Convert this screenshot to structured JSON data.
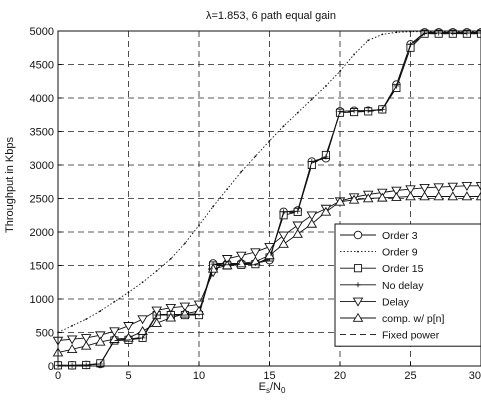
{
  "chart_data": {
    "type": "line",
    "title": "λ=1.853, 6 path equal gain",
    "xlabel": "E_s/N_0",
    "xlabel_main": "E",
    "xlabel_sub1": "s",
    "xlabel_slash": "/N",
    "xlabel_sub2": "0",
    "ylabel": "Throughput in Kbps",
    "xlim": [
      0,
      30
    ],
    "ylim": [
      0,
      5000
    ],
    "x_ticks": [
      0,
      5,
      10,
      15,
      20,
      25,
      30
    ],
    "y_ticks": [
      0,
      500,
      1000,
      1500,
      2000,
      2500,
      3000,
      3500,
      4000,
      4500,
      5000
    ],
    "grid": "dashed",
    "legend_position": "lower-right",
    "series": [
      {
        "name": "Order 3",
        "marker": "circle",
        "dash": "solid",
        "x": [
          0,
          1,
          2,
          3,
          4,
          5,
          6,
          7,
          8,
          9,
          10,
          11,
          12,
          13,
          14,
          15,
          16,
          17,
          18,
          19,
          20,
          21,
          22,
          23,
          24,
          25,
          26,
          27,
          28,
          29,
          30
        ],
        "y": [
          10,
          10,
          15,
          30,
          390,
          400,
          430,
          770,
          770,
          770,
          780,
          1530,
          1530,
          1530,
          1530,
          1580,
          2300,
          2320,
          3050,
          3100,
          3800,
          3810,
          3810,
          3830,
          4200,
          4800,
          4980,
          4980,
          4980,
          4980,
          4980
        ]
      },
      {
        "name": "Order 9",
        "marker": "dot",
        "dash": "dotted",
        "x": [
          0,
          1,
          2,
          3,
          4,
          5,
          6,
          7,
          8,
          9,
          10,
          11,
          12,
          13,
          14,
          15,
          16,
          17,
          18,
          19,
          20,
          21,
          22,
          23,
          24,
          25,
          26,
          27,
          28,
          29,
          30
        ],
        "y": [
          500,
          600,
          700,
          820,
          960,
          1100,
          1250,
          1420,
          1600,
          1830,
          2100,
          2380,
          2640,
          2900,
          3130,
          3360,
          3580,
          3780,
          3980,
          4180,
          4400,
          4650,
          4860,
          4950,
          4980,
          4990,
          4990,
          4990,
          4990,
          4990,
          4990
        ]
      },
      {
        "name": "Order 15",
        "marker": "square",
        "dash": "solid",
        "x": [
          0,
          1,
          2,
          3,
          4,
          5,
          6,
          7,
          8,
          9,
          10,
          11,
          12,
          13,
          14,
          15,
          16,
          17,
          18,
          19,
          20,
          21,
          22,
          23,
          24,
          25,
          26,
          27,
          28,
          29,
          30
        ],
        "y": [
          10,
          10,
          15,
          40,
          380,
          390,
          420,
          760,
          760,
          760,
          760,
          1500,
          1500,
          1510,
          1520,
          1620,
          2250,
          2300,
          3000,
          3150,
          3780,
          3790,
          3800,
          3830,
          4150,
          4750,
          4960,
          4960,
          4960,
          4960,
          4960
        ]
      },
      {
        "name": "No delay",
        "marker": "plus",
        "dash": "solid",
        "x": [
          0,
          1,
          2,
          3,
          4,
          5,
          6,
          7,
          8,
          9,
          10,
          11,
          12,
          13,
          14,
          15,
          16,
          17,
          18,
          19,
          20,
          21,
          22,
          23,
          24,
          25,
          26,
          27,
          28,
          29,
          30
        ],
        "y": [
          10,
          10,
          15,
          30,
          380,
          390,
          420,
          760,
          760,
          760,
          780,
          1520,
          1520,
          1520,
          1530,
          1600,
          2300,
          2310,
          3050,
          3120,
          3800,
          3810,
          3810,
          3830,
          4180,
          4800,
          4970,
          4970,
          4970,
          4970,
          4970
        ]
      },
      {
        "name": "Delay",
        "marker": "triangle-down",
        "dash": "solid",
        "x": [
          0,
          1,
          2,
          3,
          4,
          5,
          6,
          7,
          8,
          9,
          10,
          11,
          12,
          13,
          14,
          15,
          16,
          17,
          18,
          19,
          20,
          21,
          22,
          23,
          24,
          25,
          26,
          27,
          28,
          29,
          30
        ],
        "y": [
          380,
          400,
          420,
          460,
          520,
          600,
          700,
          830,
          870,
          890,
          920,
          1400,
          1600,
          1650,
          1700,
          1780,
          1950,
          2100,
          2250,
          2350,
          2460,
          2520,
          2560,
          2590,
          2620,
          2640,
          2660,
          2670,
          2680,
          2690,
          2690
        ]
      },
      {
        "name": "comp. w/ p[n]",
        "marker": "triangle-up",
        "dash": "solid",
        "x": [
          0,
          1,
          2,
          3,
          4,
          5,
          6,
          7,
          8,
          9,
          10,
          11,
          12,
          13,
          14,
          15,
          16,
          17,
          18,
          19,
          20,
          21,
          22,
          23,
          24,
          25,
          26,
          27,
          28,
          29,
          30
        ],
        "y": [
          200,
          250,
          300,
          360,
          400,
          420,
          520,
          640,
          720,
          780,
          820,
          1450,
          1500,
          1530,
          1560,
          1650,
          1820,
          1970,
          2120,
          2300,
          2450,
          2480,
          2500,
          2510,
          2520,
          2530,
          2530,
          2530,
          2530,
          2530,
          2530
        ]
      },
      {
        "name": "Fixed power",
        "marker": "none",
        "dash": "dashed",
        "x": [
          0,
          1,
          2,
          3,
          4,
          5,
          6,
          7,
          8,
          9,
          10,
          11,
          12,
          13,
          14,
          15,
          16,
          17,
          18,
          19,
          20,
          21,
          22,
          23,
          24,
          25,
          26,
          27,
          28,
          29,
          30
        ],
        "y": [
          10,
          10,
          15,
          30,
          380,
          390,
          420,
          760,
          760,
          760,
          770,
          1510,
          1510,
          1520,
          1520,
          1590,
          2280,
          2300,
          3030,
          3110,
          3790,
          3800,
          3800,
          3820,
          4170,
          4780,
          4960,
          4960,
          4960,
          4960,
          4960
        ]
      }
    ]
  }
}
